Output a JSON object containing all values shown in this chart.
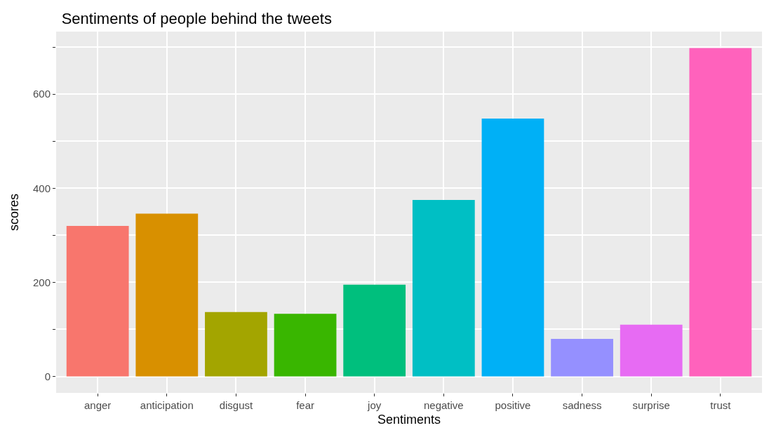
{
  "chart_data": {
    "type": "bar",
    "title": "Sentiments of people behind the tweets",
    "xlabel": "Sentiments",
    "ylabel": "scores",
    "categories": [
      "anger",
      "anticipation",
      "disgust",
      "fear",
      "joy",
      "negative",
      "positive",
      "sadness",
      "surprise",
      "trust"
    ],
    "values": [
      320,
      346,
      137,
      133,
      195,
      375,
      548,
      80,
      110,
      698
    ],
    "colors": [
      "#f8766d",
      "#d89000",
      "#a3a500",
      "#39b600",
      "#00bf7d",
      "#00bfc4",
      "#00b0f6",
      "#9590ff",
      "#e76bf3",
      "#ff62bc"
    ],
    "ylim": [
      -35,
      733
    ],
    "yticks": [
      0,
      {
        "value": 100,
        "label": null
      },
      200,
      {
        "value": 300,
        "label": null
      },
      400,
      {
        "value": 500,
        "label": null
      },
      600,
      {
        "value": 700,
        "label": null
      }
    ],
    "grid": true,
    "legend": false
  }
}
